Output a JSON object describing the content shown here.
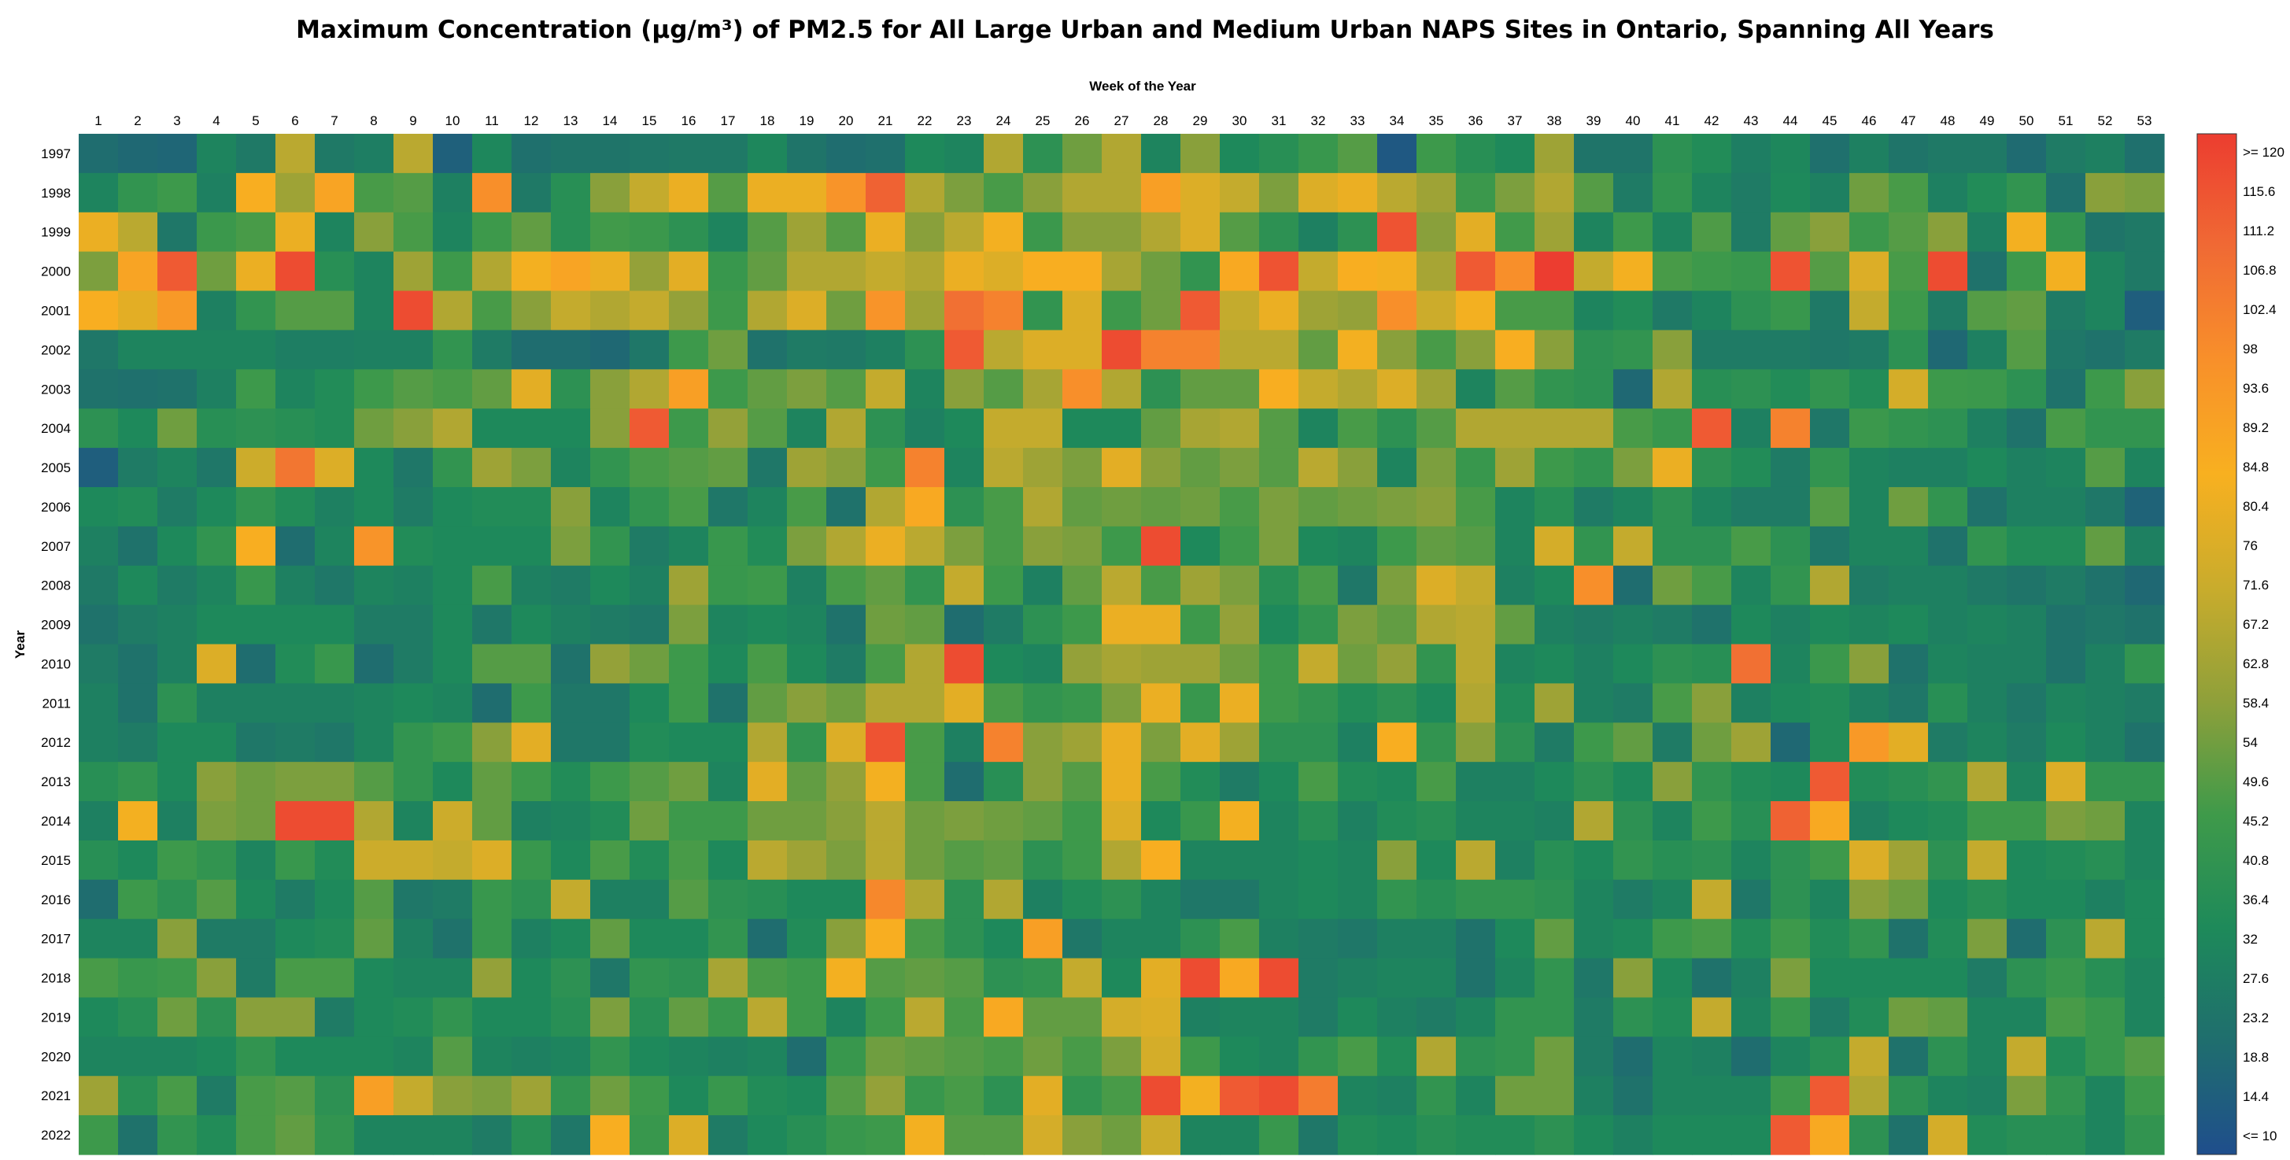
{
  "chart_data": {
    "type": "heatmap",
    "title": "Maximum Concentration (µg/m³) of PM2.5 for All Large Urban and Medium Urban NAPS Sites in Ontario, Spanning All Years",
    "xlabel": "Week of the Year",
    "ylabel": "Year",
    "x": [
      1,
      2,
      3,
      4,
      5,
      6,
      7,
      8,
      9,
      10,
      11,
      12,
      13,
      14,
      15,
      16,
      17,
      18,
      19,
      20,
      21,
      22,
      23,
      24,
      25,
      26,
      27,
      28,
      29,
      30,
      31,
      32,
      33,
      34,
      35,
      36,
      37,
      38,
      39,
      40,
      41,
      42,
      43,
      44,
      45,
      46,
      47,
      48,
      49,
      50,
      51,
      52,
      53
    ],
    "y": [
      1997,
      1998,
      1999,
      2000,
      2001,
      2002,
      2003,
      2004,
      2005,
      2006,
      2007,
      2008,
      2009,
      2010,
      2011,
      2012,
      2013,
      2014,
      2015,
      2016,
      2017,
      2018,
      2019,
      2020,
      2021,
      2022
    ],
    "colorbar": {
      "labels": [
        ">= 120",
        "115.6",
        "111.2",
        "106.8",
        "102.4",
        "98",
        "93.6",
        "89.2",
        "84.8",
        "80.4",
        "76",
        "71.6",
        "67.2",
        "62.8",
        "58.4",
        "54",
        "49.6",
        "45.2",
        "40.8",
        "36.4",
        "32",
        "27.6",
        "23.2",
        "18.8",
        "14.4",
        "<= 10"
      ],
      "min": 10,
      "max": 120,
      "colors": [
        "#1f4e8c",
        "#1f6e6e",
        "#1e8a5a",
        "#3f9a4a",
        "#8fa03a",
        "#c9ac2c",
        "#f8b020",
        "#f8902a",
        "#f06a34",
        "#ec3d30"
      ]
    },
    "values": [
      [
        22,
        20,
        19,
        32,
        27,
        68,
        27,
        29,
        68,
        17,
        33,
        23,
        25,
        25,
        26,
        27,
        27,
        33,
        25,
        22,
        23,
        34,
        32,
        66,
        40,
        54,
        66,
        32,
        58,
        34,
        38,
        44,
        50,
        14,
        46,
        38,
        34,
        62,
        25,
        25,
        40,
        36,
        29,
        33,
        23,
        30,
        25,
        27,
        27,
        21,
        28,
        30,
        23
      ],
      [
        32,
        42,
        46,
        30,
        84,
        62,
        88,
        48,
        50,
        30,
        96,
        27,
        38,
        58,
        70,
        80,
        50,
        80,
        80,
        94,
        110,
        66,
        56,
        48,
        58,
        66,
        66,
        90,
        76,
        70,
        56,
        76,
        80,
        68,
        62,
        45,
        56,
        66,
        50,
        28,
        42,
        32,
        28,
        34,
        30,
        54,
        48,
        30,
        36,
        42,
        23,
        58,
        56
      ],
      [
        80,
        68,
        26,
        45,
        48,
        80,
        32,
        58,
        48,
        32,
        46,
        52,
        38,
        47,
        45,
        40,
        32,
        50,
        62,
        50,
        80,
        58,
        68,
        82,
        45,
        58,
        58,
        66,
        76,
        50,
        40,
        30,
        40,
        114,
        58,
        78,
        47,
        62,
        32,
        46,
        32,
        49,
        28,
        52,
        58,
        45,
        50,
        58,
        30,
        82,
        42,
        25,
        27
      ],
      [
        56,
        88,
        112,
        54,
        80,
        116,
        38,
        32,
        62,
        46,
        66,
        82,
        88,
        80,
        60,
        78,
        44,
        52,
        66,
        66,
        70,
        66,
        80,
        76,
        84,
        84,
        64,
        54,
        42,
        86,
        114,
        70,
        84,
        82,
        64,
        112,
        96,
        120,
        70,
        82,
        48,
        46,
        44,
        114,
        50,
        76,
        48,
        116,
        24,
        46,
        82,
        32,
        27
      ],
      [
        84,
        78,
        92,
        30,
        42,
        50,
        50,
        32,
        116,
        66,
        48,
        58,
        70,
        66,
        70,
        60,
        46,
        66,
        76,
        54,
        94,
        62,
        106,
        100,
        42,
        76,
        46,
        54,
        112,
        70,
        80,
        62,
        60,
        96,
        72,
        82,
        48,
        48,
        32,
        36,
        27,
        32,
        40,
        44,
        27,
        70,
        46,
        28,
        50,
        52,
        28,
        32,
        16
      ],
      [
        26,
        32,
        32,
        32,
        32,
        29,
        29,
        30,
        30,
        42,
        28,
        22,
        22,
        20,
        26,
        46,
        54,
        24,
        28,
        27,
        30,
        40,
        112,
        68,
        76,
        76,
        116,
        100,
        100,
        68,
        68,
        52,
        82,
        58,
        48,
        58,
        84,
        58,
        40,
        42,
        58,
        28,
        28,
        28,
        26,
        28,
        40,
        20,
        30,
        50,
        26,
        24,
        28
      ],
      [
        24,
        23,
        24,
        30,
        46,
        32,
        36,
        46,
        50,
        48,
        52,
        78,
        40,
        58,
        66,
        90,
        46,
        52,
        56,
        50,
        70,
        32,
        58,
        50,
        64,
        96,
        66,
        40,
        52,
        52,
        84,
        70,
        66,
        76,
        62,
        32,
        50,
        42,
        40,
        20,
        66,
        38,
        40,
        36,
        42,
        36,
        74,
        46,
        45,
        40,
        24,
        46,
        58
      ],
      [
        40,
        34,
        54,
        38,
        40,
        38,
        36,
        54,
        58,
        66,
        34,
        34,
        34,
        58,
        112,
        46,
        60,
        50,
        32,
        66,
        40,
        30,
        34,
        70,
        70,
        34,
        34,
        52,
        64,
        66,
        50,
        32,
        48,
        40,
        50,
        66,
        66,
        66,
        66,
        48,
        44,
        112,
        30,
        100,
        26,
        45,
        42,
        40,
        30,
        24,
        48,
        42,
        42
      ],
      [
        16,
        28,
        32,
        26,
        72,
        104,
        76,
        34,
        26,
        42,
        62,
        56,
        32,
        42,
        48,
        50,
        52,
        26,
        62,
        58,
        46,
        100,
        32,
        68,
        62,
        56,
        78,
        58,
        52,
        56,
        50,
        68,
        58,
        32,
        56,
        44,
        62,
        46,
        42,
        56,
        80,
        40,
        36,
        28,
        42,
        32,
        30,
        30,
        34,
        30,
        32,
        50,
        32
      ],
      [
        34,
        36,
        28,
        34,
        42,
        36,
        30,
        34,
        28,
        34,
        36,
        36,
        58,
        32,
        42,
        48,
        26,
        32,
        48,
        24,
        66,
        86,
        40,
        48,
        66,
        52,
        54,
        52,
        54,
        48,
        56,
        52,
        54,
        56,
        58,
        48,
        32,
        38,
        28,
        32,
        40,
        32,
        28,
        28,
        50,
        32,
        54,
        42,
        24,
        30,
        30,
        26,
        18
      ],
      [
        30,
        24,
        34,
        42,
        84,
        22,
        32,
        94,
        36,
        34,
        34,
        34,
        56,
        42,
        28,
        32,
        44,
        36,
        56,
        66,
        80,
        68,
        56,
        48,
        58,
        56,
        46,
        116,
        34,
        46,
        56,
        34,
        32,
        46,
        52,
        50,
        32,
        74,
        42,
        70,
        40,
        40,
        48,
        40,
        26,
        32,
        32,
        24,
        42,
        36,
        36,
        52,
        30
      ],
      [
        27,
        34,
        28,
        32,
        44,
        30,
        26,
        32,
        30,
        34,
        48,
        30,
        28,
        34,
        30,
        62,
        44,
        46,
        30,
        48,
        52,
        42,
        70,
        46,
        30,
        52,
        68,
        48,
        62,
        56,
        38,
        48,
        26,
        56,
        76,
        70,
        30,
        34,
        96,
        22,
        54,
        48,
        32,
        42,
        66,
        28,
        30,
        30,
        27,
        25,
        28,
        24,
        20
      ],
      [
        24,
        28,
        30,
        34,
        34,
        34,
        34,
        28,
        28,
        34,
        26,
        34,
        30,
        28,
        26,
        56,
        32,
        34,
        32,
        24,
        54,
        52,
        22,
        28,
        40,
        46,
        80,
        80,
        46,
        60,
        34,
        42,
        56,
        52,
        66,
        68,
        52,
        30,
        28,
        30,
        28,
        24,
        34,
        30,
        34,
        32,
        34,
        30,
        32,
        30,
        24,
        26,
        24
      ],
      [
        28,
        24,
        30,
        76,
        22,
        36,
        44,
        22,
        28,
        34,
        50,
        50,
        24,
        60,
        54,
        46,
        34,
        48,
        34,
        28,
        48,
        66,
        116,
        34,
        32,
        60,
        64,
        62,
        62,
        54,
        46,
        70,
        54,
        60,
        42,
        68,
        32,
        34,
        30,
        34,
        40,
        38,
        106,
        32,
        45,
        58,
        24,
        32,
        30,
        30,
        24,
        30,
        42
      ],
      [
        30,
        24,
        40,
        30,
        30,
        30,
        30,
        32,
        34,
        32,
        22,
        46,
        26,
        26,
        34,
        46,
        24,
        52,
        58,
        54,
        66,
        66,
        78,
        48,
        42,
        44,
        56,
        80,
        44,
        80,
        46,
        42,
        36,
        40,
        34,
        66,
        36,
        62,
        30,
        28,
        48,
        58,
        30,
        34,
        36,
        30,
        26,
        38,
        30,
        26,
        32,
        30,
        28
      ],
      [
        30,
        28,
        34,
        34,
        26,
        28,
        26,
        32,
        42,
        46,
        58,
        78,
        26,
        26,
        36,
        34,
        34,
        66,
        42,
        76,
        114,
        48,
        30,
        100,
        58,
        62,
        80,
        56,
        78,
        62,
        40,
        40,
        30,
        84,
        42,
        58,
        40,
        28,
        46,
        52,
        28,
        54,
        62,
        20,
        36,
        92,
        78,
        28,
        32,
        28,
        34,
        30,
        24
      ],
      [
        38,
        42,
        34,
        58,
        54,
        56,
        56,
        50,
        42,
        34,
        52,
        46,
        36,
        46,
        50,
        54,
        32,
        78,
        52,
        60,
        82,
        48,
        22,
        38,
        58,
        50,
        80,
        48,
        36,
        28,
        34,
        48,
        36,
        34,
        48,
        30,
        30,
        34,
        40,
        34,
        58,
        42,
        36,
        34,
        112,
        36,
        38,
        42,
        66,
        32,
        76,
        42,
        42
      ],
      [
        30,
        82,
        30,
        56,
        54,
        116,
        116,
        66,
        32,
        72,
        52,
        30,
        32,
        36,
        54,
        46,
        46,
        54,
        54,
        58,
        68,
        54,
        56,
        54,
        52,
        46,
        76,
        34,
        44,
        82,
        32,
        38,
        30,
        36,
        38,
        32,
        32,
        30,
        66,
        40,
        32,
        46,
        38,
        110,
        86,
        30,
        34,
        36,
        46,
        46,
        56,
        54,
        32
      ],
      [
        38,
        34,
        46,
        42,
        32,
        44,
        36,
        72,
        72,
        70,
        76,
        44,
        34,
        48,
        36,
        48,
        34,
        68,
        62,
        56,
        68,
        54,
        50,
        52,
        40,
        46,
        66,
        84,
        32,
        32,
        32,
        34,
        32,
        58,
        34,
        68,
        30,
        38,
        34,
        42,
        38,
        40,
        32,
        40,
        46,
        76,
        62,
        40,
        70,
        34,
        36,
        38,
        32
      ],
      [
        22,
        46,
        40,
        50,
        34,
        28,
        34,
        50,
        26,
        28,
        44,
        40,
        70,
        30,
        30,
        50,
        40,
        38,
        34,
        34,
        98,
        66,
        40,
        66,
        30,
        36,
        40,
        32,
        26,
        26,
        32,
        34,
        32,
        42,
        38,
        42,
        42,
        40,
        32,
        28,
        32,
        70,
        26,
        40,
        32,
        58,
        54,
        34,
        38,
        34,
        34,
        30,
        34
      ],
      [
        32,
        32,
        58,
        28,
        28,
        34,
        36,
        52,
        30,
        24,
        44,
        30,
        34,
        52,
        34,
        34,
        42,
        22,
        36,
        58,
        84,
        48,
        40,
        34,
        90,
        26,
        32,
        32,
        40,
        48,
        30,
        28,
        26,
        30,
        30,
        24,
        34,
        52,
        32,
        34,
        46,
        48,
        36,
        46,
        36,
        42,
        24,
        36,
        56,
        22,
        40,
        68,
        34
      ],
      [
        48,
        44,
        46,
        58,
        28,
        48,
        48,
        34,
        32,
        32,
        60,
        34,
        40,
        26,
        42,
        40,
        64,
        48,
        46,
        82,
        50,
        52,
        50,
        40,
        42,
        70,
        34,
        78,
        116,
        86,
        116,
        28,
        30,
        32,
        32,
        24,
        32,
        42,
        26,
        58,
        34,
        24,
        30,
        56,
        34,
        34,
        34,
        34,
        28,
        40,
        44,
        38,
        32
      ],
      [
        34,
        38,
        54,
        40,
        58,
        58,
        28,
        34,
        36,
        42,
        34,
        34,
        38,
        56,
        38,
        52,
        44,
        68,
        46,
        32,
        46,
        68,
        48,
        86,
        52,
        52,
        74,
        76,
        30,
        32,
        32,
        28,
        34,
        30,
        28,
        32,
        42,
        42,
        28,
        40,
        36,
        70,
        32,
        44,
        28,
        36,
        54,
        52,
        32,
        32,
        48,
        44,
        32
      ],
      [
        32,
        32,
        32,
        34,
        42,
        34,
        34,
        34,
        32,
        50,
        32,
        30,
        32,
        42,
        34,
        32,
        30,
        32,
        22,
        44,
        54,
        52,
        50,
        48,
        54,
        48,
        56,
        74,
        46,
        34,
        32,
        42,
        48,
        36,
        66,
        40,
        42,
        54,
        28,
        22,
        32,
        30,
        22,
        32,
        38,
        70,
        24,
        40,
        32,
        70,
        36,
        44,
        50
      ],
      [
        62,
        38,
        48,
        28,
        48,
        50,
        40,
        90,
        70,
        58,
        56,
        62,
        42,
        54,
        46,
        34,
        44,
        36,
        34,
        50,
        60,
        44,
        48,
        40,
        78,
        42,
        48,
        116,
        82,
        112,
        116,
        102,
        32,
        30,
        42,
        32,
        54,
        54,
        30,
        24,
        32,
        32,
        32,
        46,
        112,
        66,
        40,
        32,
        30,
        56,
        42,
        32,
        46
      ],
      [
        46,
        24,
        42,
        36,
        48,
        52,
        42,
        32,
        32,
        32,
        28,
        38,
        26,
        84,
        44,
        76,
        28,
        34,
        38,
        44,
        46,
        82,
        50,
        50,
        74,
        58,
        54,
        72,
        32,
        32,
        44,
        26,
        36,
        34,
        38,
        36,
        36,
        40,
        34,
        30,
        34,
        34,
        34,
        112,
        86,
        40,
        24,
        74,
        36,
        38,
        38,
        32,
        42
      ]
    ]
  }
}
